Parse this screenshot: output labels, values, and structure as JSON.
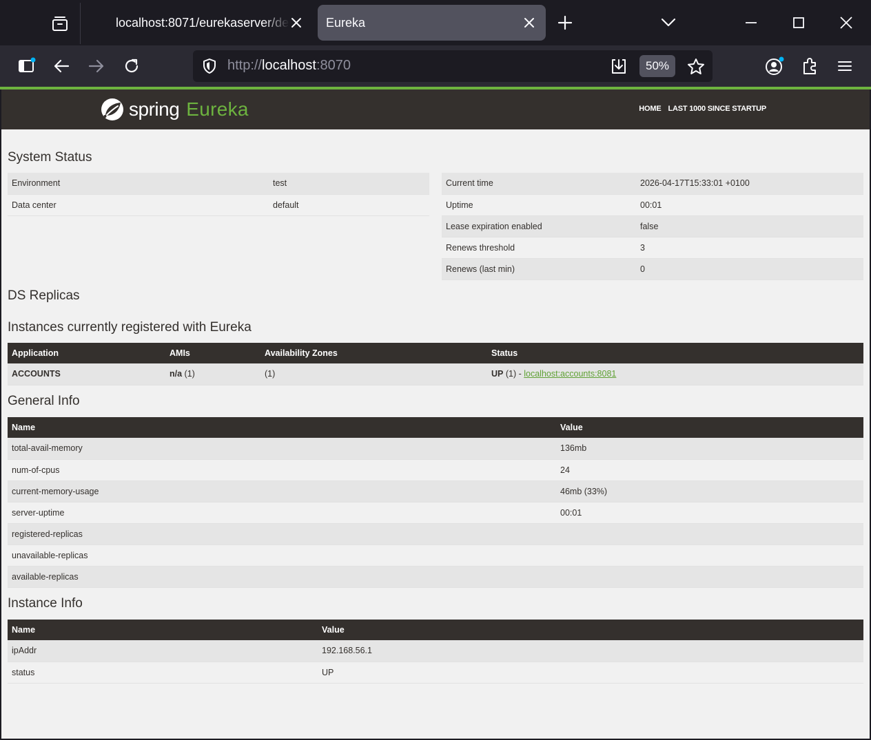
{
  "browser": {
    "tabs": [
      {
        "title": "localhost:8071/eurekaserver/default",
        "active": false
      },
      {
        "title": "Eureka",
        "active": true
      }
    ],
    "url": {
      "protocol": "http://",
      "host": "localhost",
      "port": ":8070"
    },
    "zoom": "50%"
  },
  "header": {
    "logo_word": "spring",
    "logo_product": "Eureka",
    "nav": [
      "HOME",
      "LAST 1000 SINCE STARTUP"
    ]
  },
  "system_status": {
    "title": "System Status",
    "left": [
      {
        "label": "Environment",
        "value": "test"
      },
      {
        "label": "Data center",
        "value": "default"
      }
    ],
    "right": [
      {
        "label": "Current time",
        "value": "2026-04-17T15:33:01 +0100"
      },
      {
        "label": "Uptime",
        "value": "00:01"
      },
      {
        "label": "Lease expiration enabled",
        "value": "false"
      },
      {
        "label": "Renews threshold",
        "value": "3"
      },
      {
        "label": "Renews (last min)",
        "value": "0"
      }
    ]
  },
  "ds_replicas": {
    "title": "DS Replicas"
  },
  "instances": {
    "title": "Instances currently registered with Eureka",
    "headers": [
      "Application",
      "AMIs",
      "Availability Zones",
      "Status"
    ],
    "rows": [
      {
        "application": "ACCOUNTS",
        "amis_bold": "n/a",
        "amis_count": " (1)",
        "zones": "(1)",
        "status_bold": "UP",
        "status_rest": " (1) - ",
        "link": "localhost:accounts:8081"
      }
    ]
  },
  "general_info": {
    "title": "General Info",
    "headers": [
      "Name",
      "Value"
    ],
    "rows": [
      {
        "name": "total-avail-memory",
        "value": "136mb"
      },
      {
        "name": "num-of-cpus",
        "value": "24"
      },
      {
        "name": "current-memory-usage",
        "value": "46mb (33%)"
      },
      {
        "name": "server-uptime",
        "value": "00:01"
      },
      {
        "name": "registered-replicas",
        "value": ""
      },
      {
        "name": "unavailable-replicas",
        "value": ""
      },
      {
        "name": "available-replicas",
        "value": ""
      }
    ]
  },
  "instance_info": {
    "title": "Instance Info",
    "headers": [
      "Name",
      "Value"
    ],
    "rows": [
      {
        "name": "ipAddr",
        "value": "192.168.56.1"
      },
      {
        "name": "status",
        "value": "UP"
      }
    ]
  }
}
